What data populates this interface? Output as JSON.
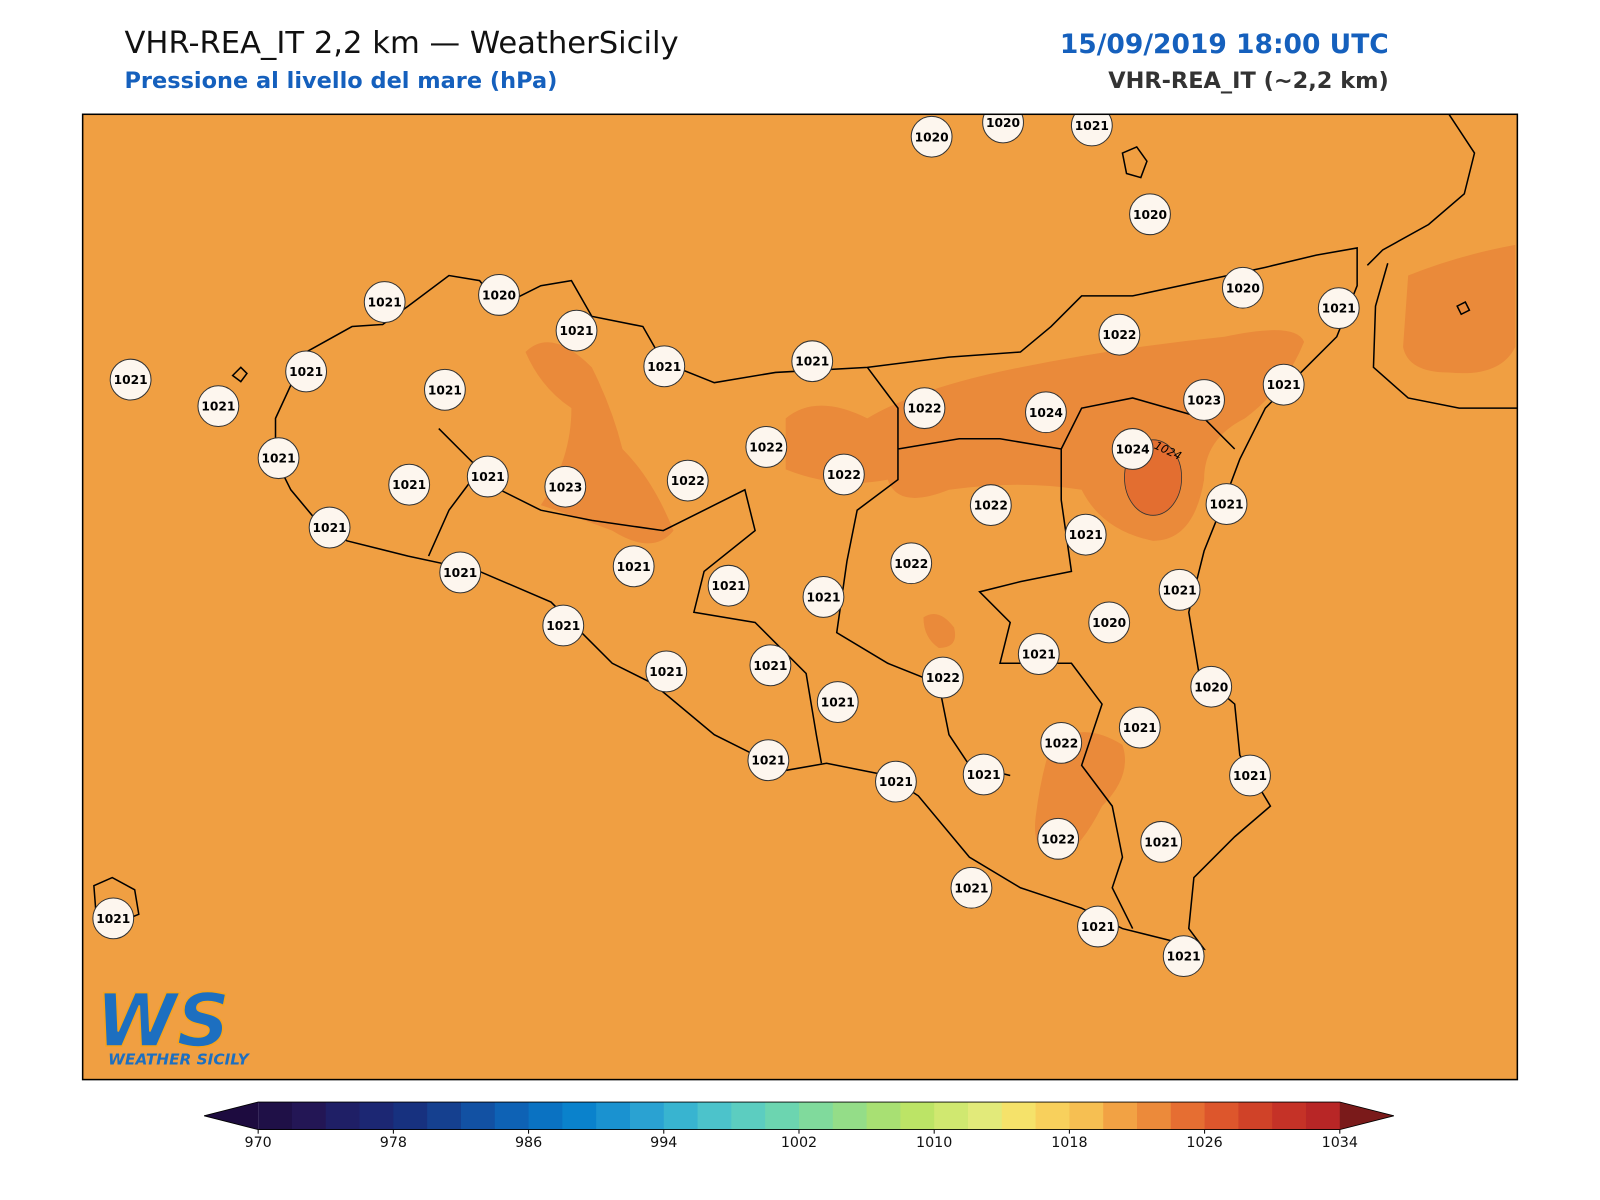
{
  "header": {
    "title": "VHR-REA_IT 2,2 km — WeatherSicily",
    "subtitle": "Pressione al livello del mare (hPa)",
    "datetime": "15/09/2019 18:00 UTC",
    "model": "VHR-REA_IT (~2,2 km)"
  },
  "map": {
    "stations": [
      1020,
      1020,
      1021,
      1020,
      1021,
      1020,
      1021,
      1021,
      1021,
      1022,
      1020,
      1021,
      1021,
      1021,
      1021,
      1021,
      1022,
      1024,
      1023,
      1021,
      1021,
      1021,
      1021,
      1023,
      1022,
      1022,
      1022,
      1024,
      1022,
      1021,
      1021,
      1021,
      1021,
      1021,
      1021,
      1021,
      1022,
      1021,
      1021,
      1020,
      1021,
      1021,
      1021,
      1022,
      1020,
      1021,
      1022,
      1021,
      1021,
      1021,
      1021,
      1021,
      1022,
      1021,
      1021,
      1021,
      1021,
      1021
    ],
    "contour_labels": [
      1024
    ]
  },
  "colorbar": {
    "lim": [
      970,
      1034
    ],
    "ticks": [
      970,
      978,
      986,
      994,
      1002,
      1010,
      1018,
      1026,
      1034
    ],
    "colors": [
      "#1f1047",
      "#231655",
      "#1f1f66",
      "#1c2773",
      "#17317f",
      "#15408f",
      "#1251a3",
      "#0e62b5",
      "#0a72c2",
      "#0a82cc",
      "#1a92d0",
      "#2aa2d2",
      "#38b4d0",
      "#4cc3cb",
      "#5ccdc0",
      "#6cd5b0",
      "#80da9c",
      "#94dd88",
      "#a8e073",
      "#bce466",
      "#d0e870",
      "#e2ea7a",
      "#f5e26a",
      "#f8d05c",
      "#f6bf52",
      "#f2a244",
      "#ec8a3a",
      "#e66e32",
      "#dd562c",
      "#d04228",
      "#c53227",
      "#b82626"
    ],
    "under_color": "#1d0b3f",
    "over_color": "#7a1a1a"
  },
  "logo": {
    "mark": "WS",
    "text": "WEATHER SICILY"
  }
}
